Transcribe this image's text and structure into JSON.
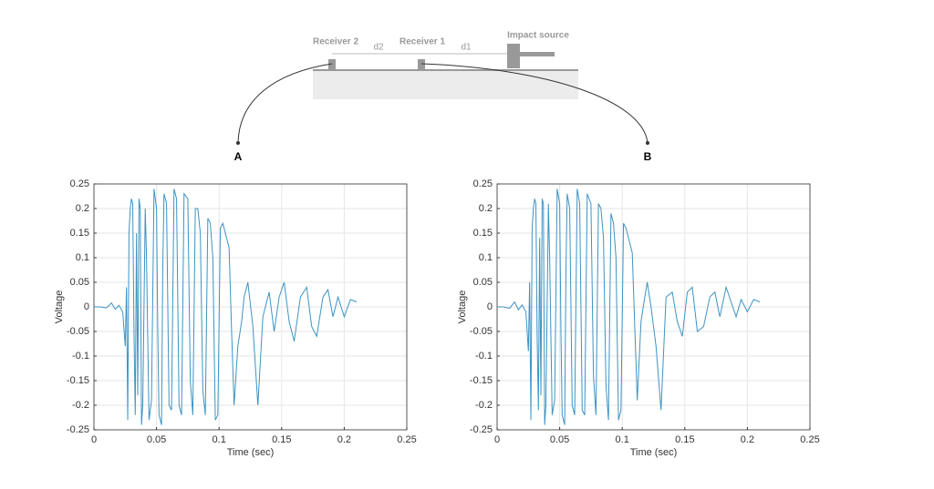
{
  "diagram": {
    "receiver2": "Receiver 2",
    "receiver1": "Receiver 1",
    "impact": "Impact source",
    "d2": "d2",
    "d1": "d1",
    "label_a": "A",
    "label_b": "B"
  },
  "chart_data": [
    {
      "type": "line",
      "xlabel": "Time (sec)",
      "ylabel": "Voltage",
      "x": [
        0,
        0.005,
        0.01,
        0.014,
        0.017,
        0.02,
        0.023,
        0.025,
        0.026,
        0.027,
        0.028,
        0.029,
        0.03,
        0.031,
        0.032,
        0.033,
        0.034,
        0.035,
        0.036,
        0.037,
        0.038,
        0.039,
        0.041,
        0.042,
        0.044,
        0.046,
        0.048,
        0.05,
        0.051,
        0.052,
        0.054,
        0.055,
        0.056,
        0.058,
        0.06,
        0.062,
        0.064,
        0.066,
        0.068,
        0.07,
        0.072,
        0.075,
        0.077,
        0.079,
        0.081,
        0.083,
        0.085,
        0.087,
        0.089,
        0.091,
        0.093,
        0.095,
        0.097,
        0.099,
        0.101,
        0.103,
        0.106,
        0.108,
        0.11,
        0.112,
        0.115,
        0.118,
        0.12,
        0.123,
        0.127,
        0.131,
        0.135,
        0.14,
        0.144,
        0.148,
        0.152,
        0.156,
        0.16,
        0.165,
        0.17,
        0.174,
        0.178,
        0.183,
        0.187,
        0.191,
        0.195,
        0.2,
        0.205,
        0.21
      ],
      "series": [
        {
          "color": "#3d93c2",
          "values": [
            0,
            0,
            -0.002,
            0.008,
            -0.005,
            0.003,
            -0.01,
            -0.08,
            0.04,
            -0.23,
            0.15,
            0.2,
            0.22,
            0.21,
            -0.05,
            -0.22,
            0.15,
            -0.18,
            0.22,
            0.2,
            -0.24,
            -0.2,
            0.2,
            0.1,
            -0.23,
            -0.19,
            0.24,
            0.2,
            -0.05,
            -0.22,
            -0.24,
            0.08,
            0.23,
            0.21,
            -0.2,
            -0.21,
            0.24,
            0.22,
            -0.2,
            -0.22,
            0.23,
            0.22,
            -0.15,
            -0.22,
            0.2,
            0.2,
            0.15,
            -0.17,
            -0.22,
            0.18,
            0.17,
            0.1,
            -0.23,
            -0.22,
            0.16,
            0.17,
            0.14,
            0.12,
            -0.05,
            -0.2,
            -0.08,
            -0.03,
            0.02,
            0.05,
            -0.04,
            -0.2,
            -0.02,
            0.03,
            -0.05,
            0.02,
            0.05,
            -0.03,
            -0.07,
            0.02,
            0.04,
            -0.04,
            -0.06,
            0.02,
            0.035,
            -0.02,
            0.02,
            -0.02,
            0.015,
            0.01
          ]
        }
      ],
      "xlim": [
        0,
        0.25
      ],
      "ylim": [
        -0.25,
        0.25
      ],
      "xticks": [
        0,
        0.05,
        0.1,
        0.15,
        0.2,
        0.25
      ],
      "yticks": [
        -0.25,
        -0.2,
        -0.15,
        -0.1,
        -0.05,
        0,
        0.05,
        0.1,
        0.15,
        0.2,
        0.25
      ],
      "grid": true
    },
    {
      "type": "line",
      "xlabel": "Time (sec)",
      "ylabel": "Voltage",
      "x": [
        0,
        0.005,
        0.01,
        0.014,
        0.017,
        0.02,
        0.023,
        0.025,
        0.026,
        0.027,
        0.028,
        0.029,
        0.03,
        0.031,
        0.032,
        0.033,
        0.034,
        0.035,
        0.036,
        0.037,
        0.038,
        0.039,
        0.041,
        0.042,
        0.044,
        0.046,
        0.048,
        0.05,
        0.051,
        0.052,
        0.054,
        0.055,
        0.056,
        0.058,
        0.06,
        0.062,
        0.064,
        0.066,
        0.068,
        0.07,
        0.072,
        0.075,
        0.077,
        0.079,
        0.081,
        0.083,
        0.085,
        0.087,
        0.089,
        0.091,
        0.093,
        0.095,
        0.097,
        0.099,
        0.101,
        0.103,
        0.106,
        0.108,
        0.11,
        0.112,
        0.115,
        0.118,
        0.12,
        0.123,
        0.127,
        0.131,
        0.135,
        0.14,
        0.144,
        0.148,
        0.152,
        0.156,
        0.16,
        0.165,
        0.17,
        0.174,
        0.178,
        0.183,
        0.187,
        0.191,
        0.195,
        0.2,
        0.205,
        0.21
      ],
      "series": [
        {
          "color": "#3d93c2",
          "values": [
            0,
            0,
            -0.003,
            0.01,
            -0.006,
            0.004,
            -0.01,
            -0.09,
            0.05,
            -0.23,
            0.16,
            0.2,
            0.22,
            0.21,
            -0.06,
            -0.21,
            0.14,
            -0.18,
            0.22,
            0.21,
            -0.24,
            -0.2,
            0.21,
            0.1,
            -0.22,
            -0.19,
            0.24,
            0.21,
            -0.05,
            -0.22,
            -0.24,
            0.07,
            0.23,
            0.2,
            -0.2,
            -0.22,
            0.24,
            0.21,
            -0.21,
            -0.22,
            0.23,
            0.21,
            -0.14,
            -0.22,
            0.21,
            0.2,
            0.14,
            -0.16,
            -0.23,
            0.19,
            0.17,
            0.1,
            -0.23,
            -0.21,
            0.17,
            0.16,
            0.13,
            0.11,
            -0.04,
            -0.19,
            -0.03,
            0.02,
            0.05,
            0,
            -0.08,
            -0.21,
            0.02,
            0.03,
            -0.03,
            -0.06,
            0.03,
            0.04,
            -0.05,
            -0.04,
            0.02,
            0.03,
            -0.02,
            0.04,
            0.01,
            -0.02,
            0.015,
            -0.01,
            0.015,
            0.01
          ]
        }
      ],
      "xlim": [
        0,
        0.25
      ],
      "ylim": [
        -0.25,
        0.25
      ],
      "xticks": [
        0,
        0.05,
        0.1,
        0.15,
        0.2,
        0.25
      ],
      "yticks": [
        -0.25,
        -0.2,
        -0.15,
        -0.1,
        -0.05,
        0,
        0.05,
        0.1,
        0.15,
        0.2,
        0.25
      ],
      "grid": true
    }
  ]
}
